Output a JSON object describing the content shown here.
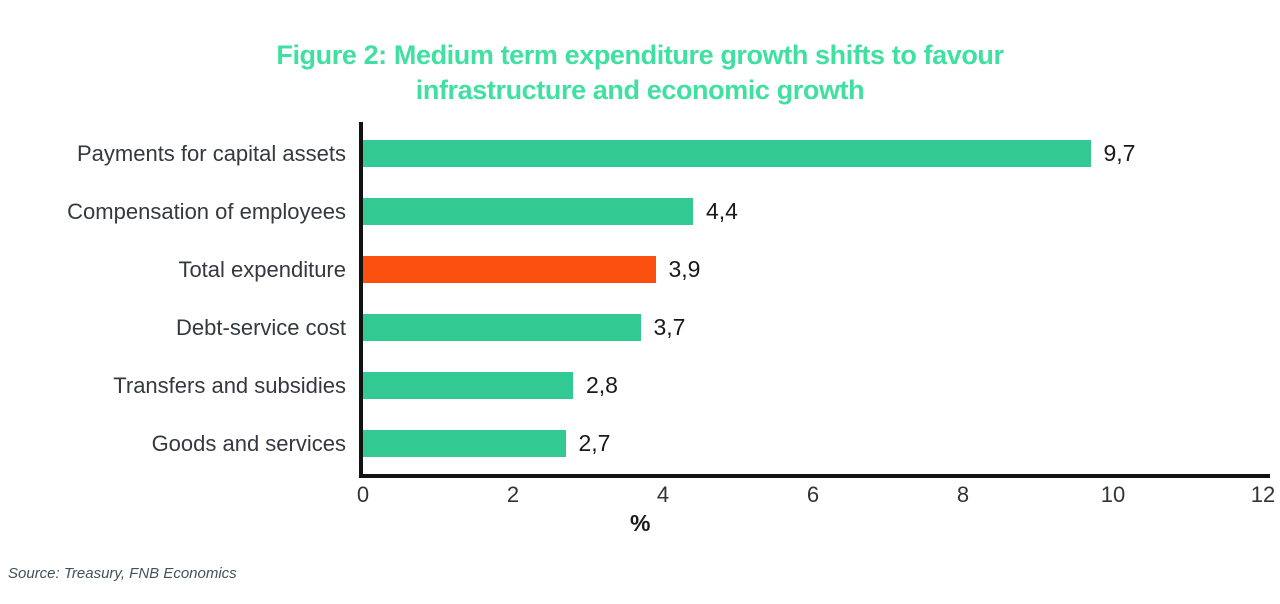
{
  "title": {
    "line1": "Figure 2: Medium term expenditure growth shifts to favour",
    "line2": "infrastructure and economic growth"
  },
  "source_note": "Source: Treasury, FNB Economics",
  "chart_data": {
    "type": "bar",
    "orientation": "horizontal",
    "title": "Figure 2: Medium term expenditure growth shifts to favour infrastructure and economic growth",
    "categories": [
      "Payments for capital assets",
      "Compensation of employees",
      "Total expenditure",
      "Debt-service cost",
      "Transfers and subsidies",
      "Goods and services"
    ],
    "values": [
      9.7,
      4.4,
      3.9,
      3.7,
      2.8,
      2.7
    ],
    "value_labels": [
      "9,7",
      "4,4",
      "3,9",
      "3,7",
      "2,8",
      "2,7"
    ],
    "bar_colors": [
      "#33c992",
      "#33c992",
      "#fb4f0f",
      "#33c992",
      "#33c992",
      "#33c992"
    ],
    "highlight_category": "Total expenditure",
    "xlabel": "%",
    "x_ticks": [
      0,
      2,
      4,
      6,
      8,
      10,
      12
    ],
    "xlim": [
      0,
      12
    ],
    "grid": false,
    "legend": "none",
    "colors": {
      "bar_default": "#33c992",
      "bar_highlight": "#fb4f0f",
      "title_text": "#40e0a0",
      "axis": "#121212",
      "label_text": "#33393e",
      "value_text": "#17191b",
      "source_text": "#41525a"
    }
  }
}
